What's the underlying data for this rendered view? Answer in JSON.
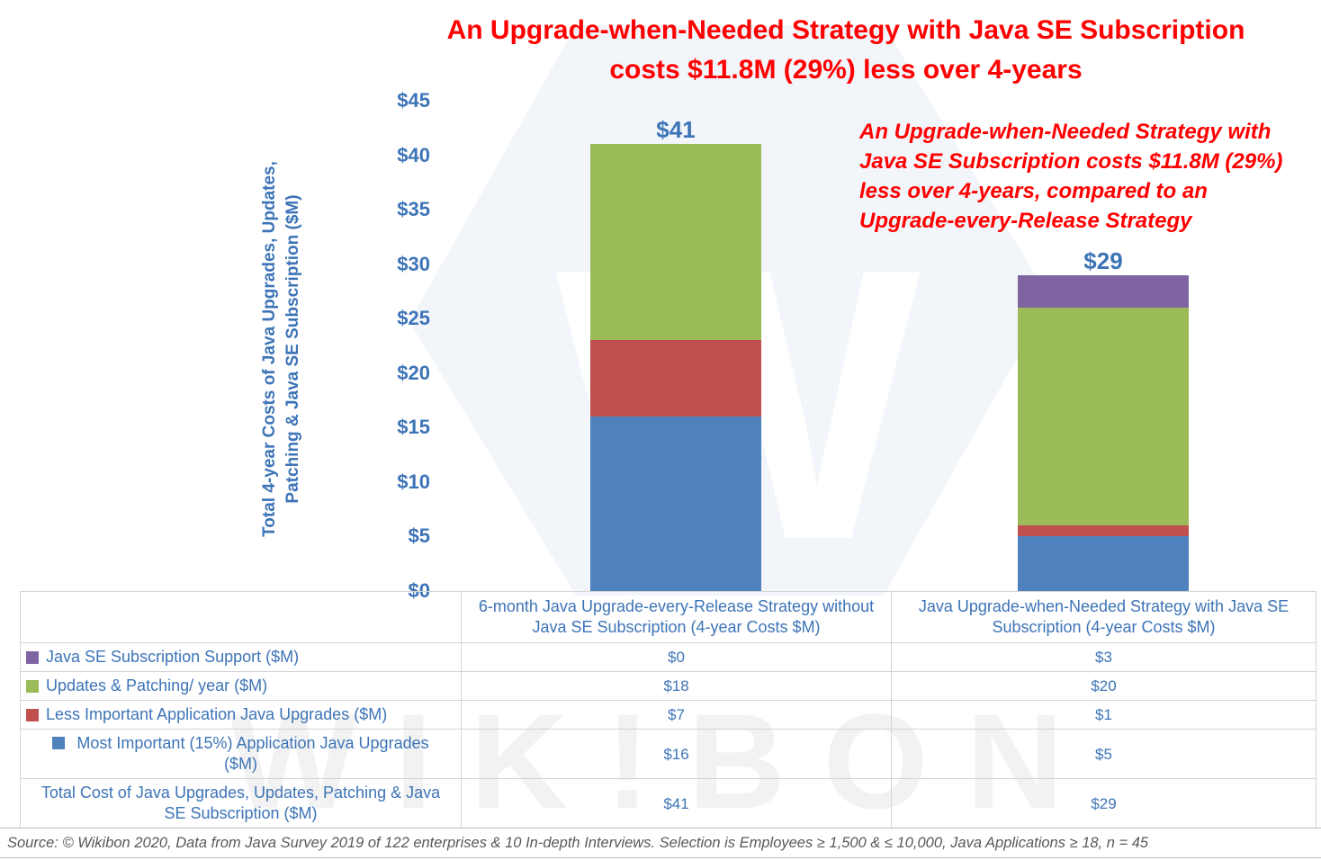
{
  "title": {
    "line1": "An Upgrade-when-Needed Strategy with Java SE Subscription",
    "line2": "costs $11.8M (29%) less over 4-years",
    "color": "#FF0000"
  },
  "annotation": {
    "text": "An Upgrade-when-Needed Strategy with Java SE Subscription costs $11.8M (29%) less over 4-years, compared to an Upgrade-every-Release Strategy",
    "color": "#FF0000"
  },
  "watermark": {
    "letter": "W",
    "text": "WIK!BON"
  },
  "chart_data": {
    "type": "bar",
    "stacked": true,
    "categories": [
      "6-month Java Upgrade-every-Release Strategy without Java SE Subscription (4-year Costs $M)",
      "Java Upgrade-when-Needed Strategy with Java SE Subscription (4-year Costs $M)"
    ],
    "series": [
      {
        "name": "Most Important (15%) Application Java Upgrades ($M)",
        "color": "#4F81BD",
        "values": [
          16,
          5
        ]
      },
      {
        "name": "Less Important Application Java Upgrades ($M)",
        "color": "#C0504D",
        "values": [
          7,
          1
        ]
      },
      {
        "name": "Updates & Patching/ year ($M)",
        "color": "#9BBB59",
        "values": [
          18,
          20
        ]
      },
      {
        "name": "Java SE Subscription Support ($M)",
        "color": "#8064A2",
        "values": [
          0,
          3
        ]
      }
    ],
    "totals": [
      "$41",
      "$29"
    ],
    "totals_numeric": [
      41,
      29
    ],
    "ylabel": "Total 4-year Costs of Java Upgrades, Updates, Patching & Java SE Subscription ($M)",
    "ylabel_lines": [
      "Total 4-year Costs of Java Upgrades, Updates,",
      "Patching & Java SE Subscription ($M)"
    ],
    "yticks": [
      0,
      5,
      10,
      15,
      20,
      25,
      30,
      35,
      40,
      45
    ],
    "ytick_prefix": "$",
    "ylim": [
      0,
      45
    ],
    "grid": false,
    "legend_position": "table-rows"
  },
  "table": {
    "col_headers": [
      "6-month Java Upgrade-every-Release Strategy without Java SE Subscription (4-year Costs $M)",
      "Java Upgrade-when-Needed Strategy with Java SE Subscription (4-year Costs $M)"
    ],
    "rows": [
      {
        "label": "Java SE Subscription Support ($M)",
        "swatch": "#8064A2",
        "col1": "$0",
        "col2": "$3"
      },
      {
        "label": "Updates & Patching/ year ($M)",
        "swatch": "#9BBB59",
        "col1": "$18",
        "col2": "$20"
      },
      {
        "label": "Less Important Application Java Upgrades ($M)",
        "swatch": "#C0504D",
        "col1": "$7",
        "col2": "$1"
      },
      {
        "label": "Most Important (15%) Application Java Upgrades",
        "label2": "($M)",
        "swatch": "#4F81BD",
        "col1": "$16",
        "col2": "$5"
      },
      {
        "label": "Total Cost of Java Upgrades, Updates, Patching & Java",
        "label2": "SE Subscription ($M)",
        "col1": "$41",
        "col2": "$29"
      }
    ]
  },
  "source": {
    "text": "Source: © Wikibon 2020, Data from Java Survey 2019 of 122 enterprises & 10 In-depth Interviews. Selection is Employees  ≥ 1,500 & ≤ 10,000, Java Applications  ≥ 18, n = 45"
  },
  "colors": {
    "axis_blue": "#3D74B7",
    "table_border": "#D4D4D4"
  }
}
